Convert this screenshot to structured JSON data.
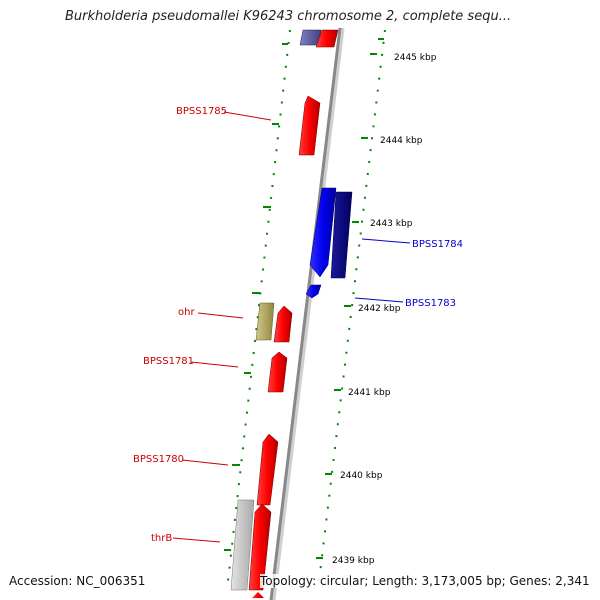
{
  "title": "Burkholderia pseudomallei K96243 chromosome 2, complete sequ...",
  "footer": {
    "accession": "Accession: NC_006351",
    "summary": "Topology: circular; Length: 3,173,005 bp; Genes: 2,341"
  },
  "scale_labels": [
    "2445 kbp",
    "2444 kbp",
    "2443 kbp",
    "2442 kbp",
    "2441 kbp",
    "2440 kbp",
    "2439 kbp"
  ],
  "gene_labels": [
    {
      "name": "BPSS1785",
      "color": "#cc0000"
    },
    {
      "name": "BPSS1784",
      "color": "#0000cc"
    },
    {
      "name": "BPSS1783",
      "color": "#0000cc"
    },
    {
      "name": "ohr",
      "color": "#cc0000"
    },
    {
      "name": "BPSS1781",
      "color": "#cc0000"
    },
    {
      "name": "BPSS1780",
      "color": "#cc0000"
    },
    {
      "name": "thrB",
      "color": "#cc0000"
    }
  ],
  "colors": {
    "forward_strand": "#ee0000",
    "reverse_strand": "#0000ee",
    "reverse_dark": "#000088",
    "rna_gene": "#b0a860",
    "other_gene": "#c0c0c0",
    "backbone": "#999999",
    "scale_ticks": "#008800"
  }
}
